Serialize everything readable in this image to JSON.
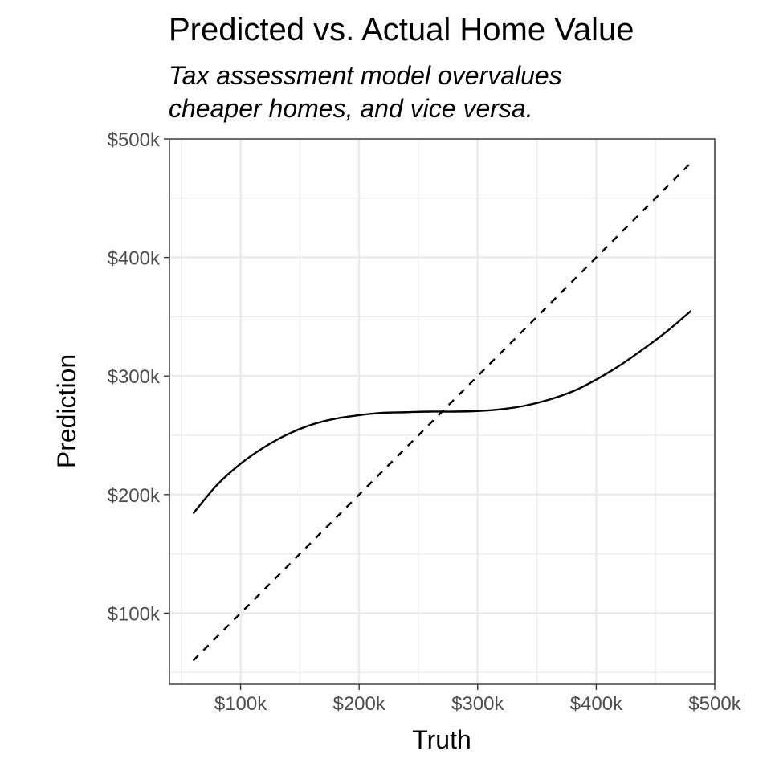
{
  "chart_data": {
    "type": "line",
    "title": "Predicted vs. Actual Home Value",
    "subtitle_lines": [
      "Tax assessment model overvalues",
      "cheaper homes, and vice versa."
    ],
    "xlabel": "Truth",
    "ylabel": "Prediction",
    "xlim": [
      40000,
      500000
    ],
    "ylim": [
      40000,
      500000
    ],
    "x_ticks": [
      {
        "value": 100000,
        "label": "$100k"
      },
      {
        "value": 200000,
        "label": "$200k"
      },
      {
        "value": 300000,
        "label": "$300k"
      },
      {
        "value": 400000,
        "label": "$400k"
      },
      {
        "value": 500000,
        "label": "$500k"
      }
    ],
    "y_ticks": [
      {
        "value": 100000,
        "label": "$100k"
      },
      {
        "value": 200000,
        "label": "$200k"
      },
      {
        "value": 300000,
        "label": "$300k"
      },
      {
        "value": 400000,
        "label": "$400k"
      },
      {
        "value": 500000,
        "label": "$500k"
      }
    ],
    "minor_breaks": [
      50000,
      150000,
      250000,
      350000,
      450000
    ],
    "grid": true,
    "series": [
      {
        "style": "solid",
        "color": "#000000",
        "x": [
          60000,
          80000,
          100000,
          120000,
          140000,
          160000,
          180000,
          200000,
          220000,
          240000,
          260000,
          280000,
          300000,
          320000,
          340000,
          360000,
          380000,
          400000,
          420000,
          440000,
          460000,
          480000
        ],
        "y": [
          184000,
          208000,
          226000,
          240000,
          251000,
          259000,
          264000,
          267000,
          269000,
          269500,
          270000,
          270000,
          270500,
          272000,
          275000,
          280000,
          287000,
          297000,
          309000,
          323000,
          338000,
          355000
        ]
      },
      {
        "style": "dashed",
        "color": "#000000",
        "x": [
          60000,
          480000
        ],
        "y": [
          60000,
          480000
        ]
      }
    ]
  }
}
